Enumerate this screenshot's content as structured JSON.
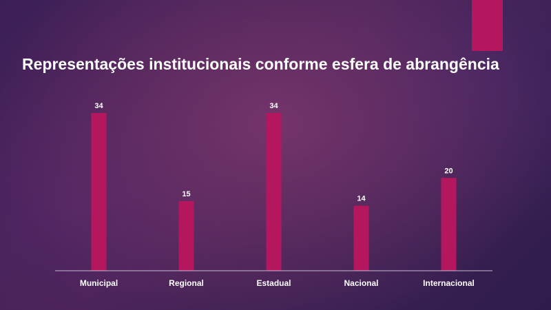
{
  "slide": {
    "title": "Representações institucionais conforme esfera de abrangência",
    "accent_color": "#b5175f"
  },
  "chart_data": {
    "type": "bar",
    "title": "Representações institucionais conforme esfera de abrangência",
    "categories": [
      "Municipal",
      "Regional",
      "Estadual",
      "Nacional",
      "Internacional"
    ],
    "values": [
      34,
      15,
      34,
      14,
      20
    ],
    "bar_color": "#b5175f",
    "xlabel": "",
    "ylabel": "",
    "ylim": [
      0,
      34
    ],
    "grid": false,
    "legend": "none",
    "data_labels": true
  }
}
